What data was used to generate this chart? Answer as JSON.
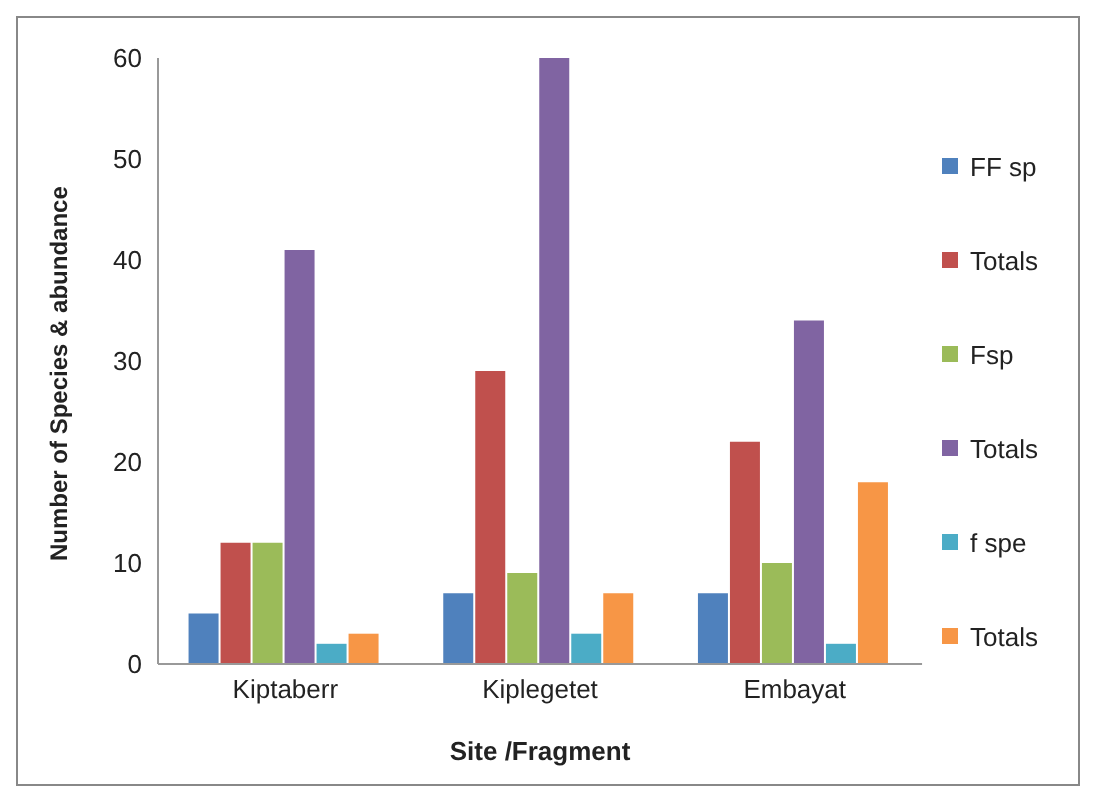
{
  "chart_data": {
    "type": "bar",
    "xlabel": "Site /Fragment",
    "ylabel": "Number of Species & abundance",
    "categories": [
      "Kiptaberr",
      "Kiplegetet",
      "Embayat"
    ],
    "series": [
      {
        "name": "FF sp",
        "color": "#4f81bd",
        "values": [
          5,
          7,
          7
        ]
      },
      {
        "name": "Totals",
        "color": "#c0504d",
        "values": [
          12,
          29,
          22
        ]
      },
      {
        "name": "Fsp",
        "color": "#9bbb59",
        "values": [
          12,
          9,
          10
        ]
      },
      {
        "name": "Totals",
        "color": "#8064a2",
        "values": [
          41,
          60,
          34
        ]
      },
      {
        "name": "f spe",
        "color": "#4bacc6",
        "values": [
          2,
          3,
          2
        ]
      },
      {
        "name": "Totals",
        "color": "#f79646",
        "values": [
          3,
          7,
          18
        ]
      }
    ],
    "ylim": [
      0,
      60
    ],
    "yticks": [
      0,
      10,
      20,
      30,
      40,
      50,
      60
    ],
    "legend": "right"
  }
}
